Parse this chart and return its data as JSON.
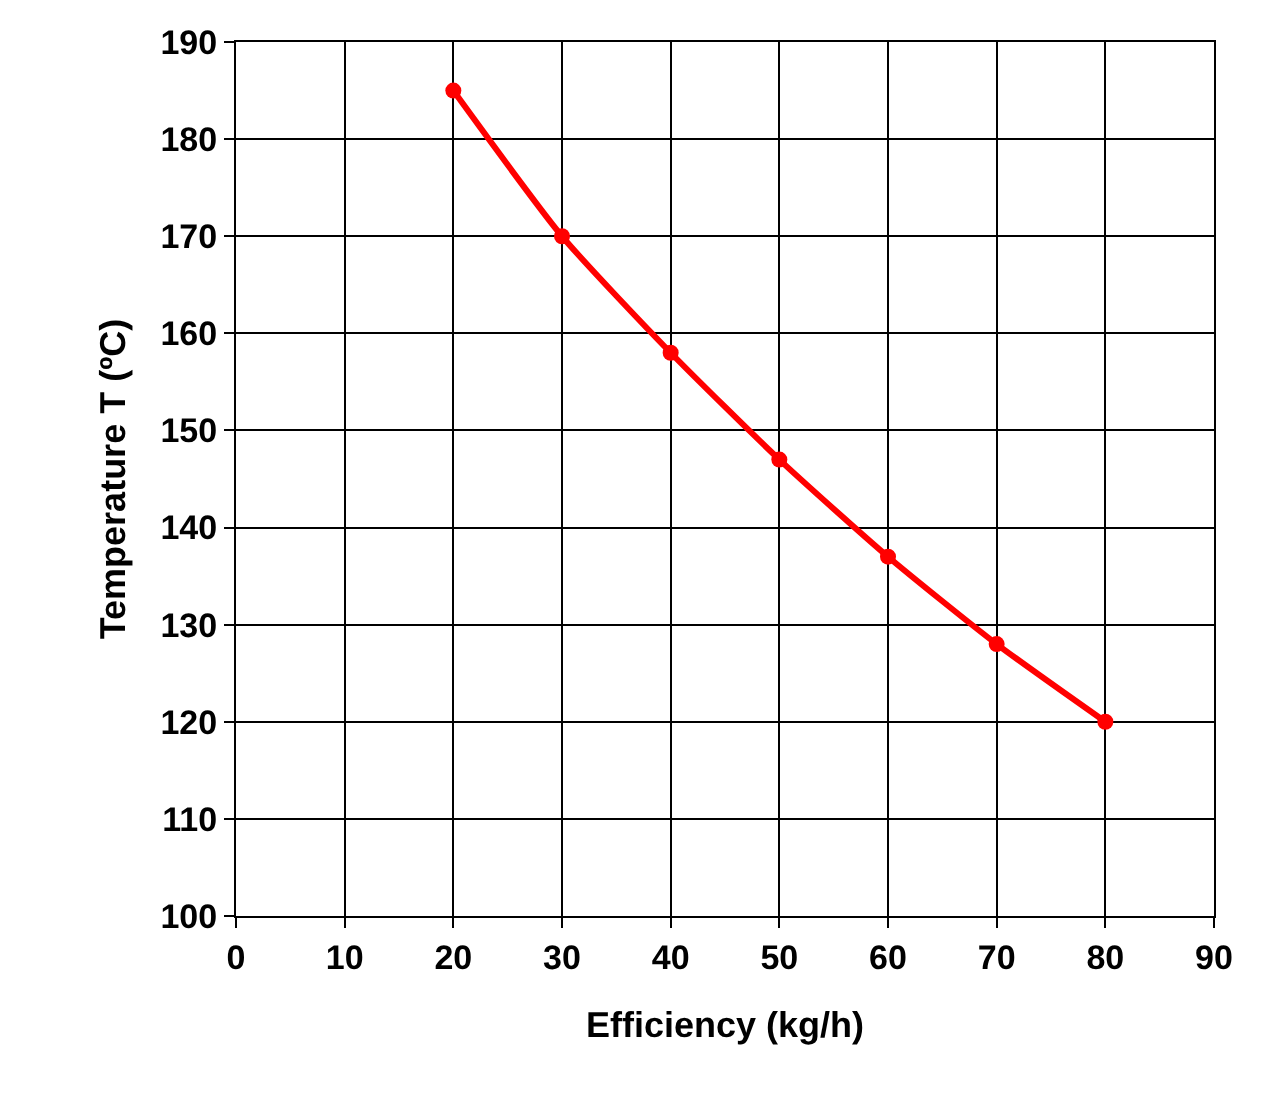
{
  "chart_data": {
    "type": "line",
    "xlabel": "Efficiency (kg/h)",
    "ylabel": "Temperature T (ºC)",
    "x": [
      20,
      30,
      40,
      50,
      60,
      70,
      80
    ],
    "series": [
      {
        "color": "#ff0000",
        "values": [
          185,
          170,
          158,
          147,
          137,
          128,
          120
        ]
      }
    ],
    "xlim": [
      0,
      90
    ],
    "xticks": [
      0,
      10,
      20,
      30,
      40,
      50,
      60,
      70,
      80,
      90
    ],
    "ylim": [
      100,
      190
    ],
    "yticks": [
      100,
      110,
      120,
      130,
      140,
      150,
      160,
      170,
      180,
      190
    ],
    "grid": true,
    "marker": "circle",
    "line_style": "solid"
  }
}
